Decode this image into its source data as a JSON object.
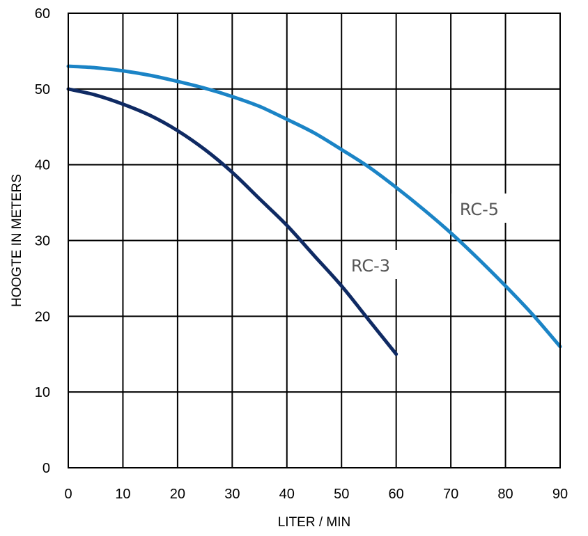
{
  "chart_data": {
    "type": "line",
    "title": "",
    "xlabel": "LITER / MIN",
    "ylabel": "HOOGTE IN METERS",
    "xlim": [
      0,
      90
    ],
    "ylim": [
      0,
      60
    ],
    "xticks": [
      0,
      10,
      20,
      30,
      40,
      50,
      60,
      70,
      80,
      90
    ],
    "yticks": [
      0,
      10,
      20,
      30,
      40,
      50,
      60
    ],
    "grid": true,
    "legend": "none",
    "series": [
      {
        "name": "RC-3",
        "color": "#0f2a63",
        "x": [
          0,
          5,
          10,
          15,
          20,
          25,
          30,
          35,
          40,
          45,
          50,
          55,
          60
        ],
        "y": [
          50,
          49.2,
          48,
          46.5,
          44.5,
          42,
          39,
          35.5,
          32,
          28,
          24,
          19.5,
          15
        ]
      },
      {
        "name": "RC-5",
        "color": "#1b84c6",
        "x": [
          0,
          5,
          10,
          15,
          20,
          25,
          30,
          35,
          40,
          45,
          50,
          55,
          60,
          65,
          70,
          75,
          80,
          85,
          90
        ],
        "y": [
          53,
          52.8,
          52.4,
          51.8,
          51,
          50.1,
          49,
          47.7,
          46,
          44.2,
          42,
          39.7,
          37,
          34.1,
          31,
          27.6,
          24,
          20.2,
          16
        ]
      }
    ],
    "annotations": [
      {
        "text": "RC-3",
        "series": "RC-3"
      },
      {
        "text": "RC-5",
        "series": "RC-5"
      }
    ]
  }
}
